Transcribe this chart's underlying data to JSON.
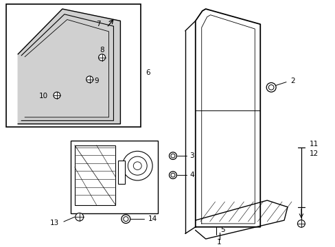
{
  "bg_color": "#ffffff",
  "line_color": "#000000",
  "light_gray": "#d0d0d0",
  "fs": 7.5
}
